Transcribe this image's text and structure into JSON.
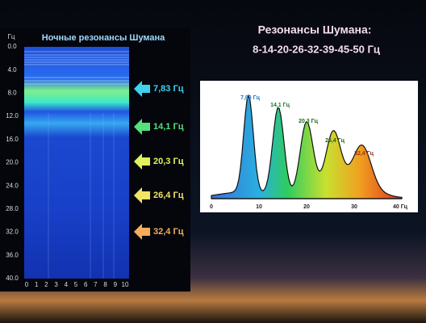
{
  "header": {
    "title": "Резонансы Шумана:",
    "subtitle": "8-14-20-26-32-39-45-50 Гц"
  },
  "spectrogram": {
    "title": "Ночные резонансы Шумана",
    "y_unit": "Гц",
    "y_ticks": [
      "0.0",
      "4.0",
      "8.0",
      "12.0",
      "16.0",
      "20.0",
      "24.0",
      "28.0",
      "32.0",
      "36.0",
      "40.0"
    ],
    "x_ticks": [
      "0",
      "1",
      "2",
      "3",
      "4",
      "5",
      "6",
      "7",
      "8",
      "9",
      "10"
    ]
  },
  "arrows": [
    {
      "label": "7,83 Гц",
      "color": "#3ed2ee"
    },
    {
      "label": "14,1 Гц",
      "color": "#55e07a"
    },
    {
      "label": "20,3 Гц",
      "color": "#e2f25c"
    },
    {
      "label": "26,4 Гц",
      "color": "#f2e464"
    },
    {
      "label": "32,4 Гц",
      "color": "#f4ae5a"
    }
  ],
  "spectrum": {
    "peaks": [
      {
        "label": "7,83 Гц",
        "color": "#1e6fc0"
      },
      {
        "label": "14,1 Гц",
        "color": "#1a7a2a"
      },
      {
        "label": "20,3 Гц",
        "color": "#1a6a1a"
      },
      {
        "label": "26,4 Гц",
        "color": "#2a5a10"
      },
      {
        "label": "32,4 Гц",
        "color": "#9a3010"
      }
    ],
    "x_ticks": [
      "0",
      "10",
      "20",
      "30",
      "40 Гц"
    ]
  }
}
